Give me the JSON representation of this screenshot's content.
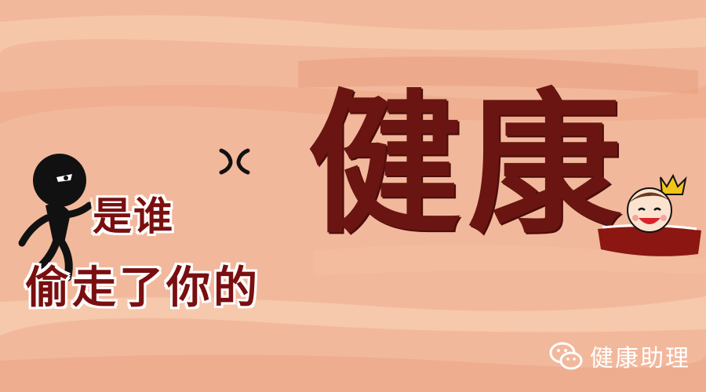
{
  "title": {
    "line1": "是谁",
    "line2": "偷走了你的",
    "big_title": "健康"
  },
  "watermark": {
    "text": "健康助理",
    "icon": "wechat-icon"
  },
  "colors": {
    "background": "#f2b89c",
    "title": "#7a0f10",
    "big_title": "#6a1512",
    "watermark": "#ffffff"
  }
}
